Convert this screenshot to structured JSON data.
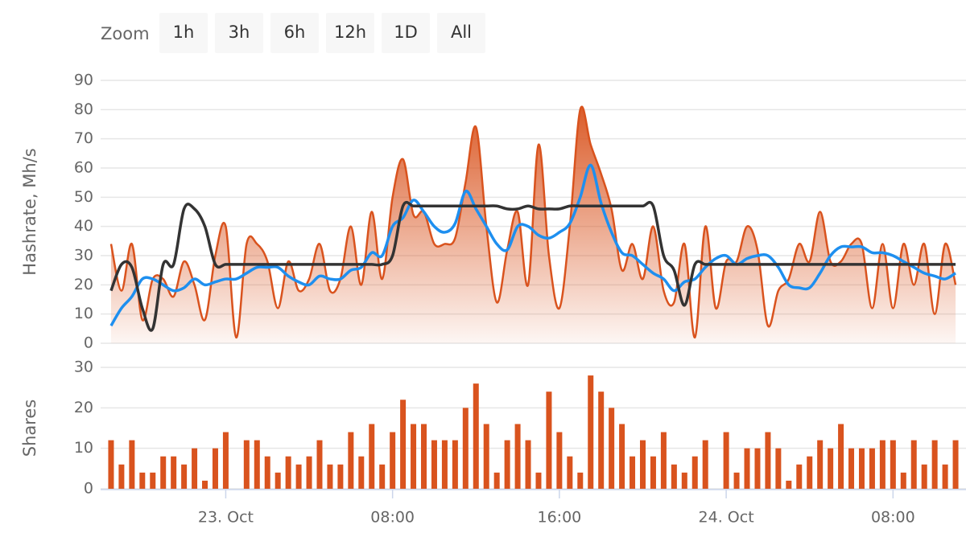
{
  "range_selector": {
    "label": "Zoom",
    "buttons": [
      "1h",
      "3h",
      "6h",
      "12h",
      "1D",
      "All"
    ]
  },
  "chart_data": [
    {
      "type": "area",
      "ylabel": "Hashrate, Mh/s",
      "x": [
        -5.5,
        -5,
        -4.5,
        -4,
        -3.5,
        -3,
        -2.5,
        -2,
        -1.5,
        -1,
        -0.5,
        0,
        0.5,
        1,
        1.5,
        2,
        2.5,
        3,
        3.5,
        4,
        4.5,
        5,
        5.5,
        6,
        6.5,
        7,
        7.5,
        8,
        8.5,
        9,
        9.5,
        10,
        10.5,
        11,
        11.5,
        12,
        12.5,
        13,
        13.5,
        14,
        14.5,
        15,
        15.5,
        16,
        16.5,
        17,
        17.5,
        18,
        18.5,
        19,
        19.5,
        20,
        20.5,
        21,
        21.5,
        22,
        22.5,
        23,
        23.5,
        24,
        24.5,
        25,
        25.5,
        26,
        26.5,
        27,
        27.5,
        28,
        28.5,
        29,
        29.5,
        30,
        30.5,
        31,
        31.5,
        32,
        32.5,
        33,
        33.5,
        34,
        34.5,
        35
      ],
      "xlim": [
        -6,
        35.5
      ],
      "xticks": [
        {
          "value": 0,
          "label": "23. Oct"
        },
        {
          "value": 8,
          "label": "08:00"
        },
        {
          "value": 16,
          "label": "16:00"
        },
        {
          "value": 24,
          "label": "24. Oct"
        },
        {
          "value": 32,
          "label": "08:00"
        }
      ],
      "ylim": [
        0,
        90
      ],
      "yticks": [
        0,
        10,
        20,
        30,
        40,
        50,
        60,
        70,
        80,
        90
      ],
      "grid": true,
      "series": [
        {
          "type": "area",
          "color": "#d9531e",
          "values": [
            34,
            18,
            34,
            8,
            22,
            22,
            16,
            28,
            20,
            8,
            30,
            40,
            2,
            34,
            34,
            28,
            12,
            28,
            18,
            22,
            34,
            18,
            22,
            40,
            20,
            45,
            22,
            50,
            63,
            44,
            45,
            34,
            34,
            36,
            55,
            74,
            40,
            14,
            32,
            45,
            20,
            68,
            30,
            12,
            40,
            80,
            68,
            58,
            46,
            25,
            34,
            22,
            40,
            18,
            14,
            34,
            2,
            40,
            12,
            28,
            28,
            40,
            32,
            6,
            18,
            22,
            34,
            28,
            45,
            28,
            28,
            34,
            34,
            12,
            34,
            12,
            34,
            20,
            34,
            10,
            34,
            20
          ]
        },
        {
          "type": "line",
          "color": "#1e8fef",
          "values": [
            6,
            12,
            16,
            22,
            22,
            20,
            18,
            19,
            22,
            20,
            21,
            22,
            22,
            24,
            26,
            26,
            26,
            23,
            21,
            20,
            23,
            22,
            22,
            25,
            26,
            31,
            30,
            40,
            43,
            49,
            45,
            40,
            38,
            41,
            52,
            46,
            40,
            34,
            32,
            40,
            40,
            37,
            36,
            38,
            41,
            50,
            61,
            48,
            38,
            31,
            30,
            27,
            24,
            22,
            18,
            21,
            22,
            26,
            29,
            30,
            27,
            29,
            30,
            30,
            26,
            20,
            19,
            19,
            24,
            30,
            33,
            33,
            33,
            31,
            31,
            30,
            28,
            26,
            24,
            23,
            22,
            24
          ]
        },
        {
          "type": "line",
          "color": "#333333",
          "values": [
            18,
            27,
            26,
            12,
            5,
            27,
            27,
            46,
            46,
            40,
            27,
            27,
            27,
            27,
            27,
            27,
            27,
            27,
            27,
            27,
            27,
            27,
            27,
            27,
            27,
            27,
            27,
            30,
            47,
            47,
            47,
            47,
            47,
            47,
            47,
            47,
            47,
            47,
            46,
            46,
            47,
            46,
            46,
            46,
            47,
            47,
            47,
            47,
            47,
            47,
            47,
            47,
            47,
            30,
            25,
            13,
            27,
            27,
            27,
            27,
            27,
            27,
            27,
            27,
            27,
            27,
            27,
            27,
            27,
            27,
            27,
            27,
            27,
            27,
            27,
            27,
            27,
            27,
            27,
            27,
            27,
            27
          ]
        }
      ]
    },
    {
      "type": "bar",
      "ylabel": "Shares",
      "color": "#d9531e",
      "x": [
        -5.5,
        -5,
        -4.5,
        -4,
        -3.5,
        -3,
        -2.5,
        -2,
        -1.5,
        -1,
        -0.5,
        0,
        0.5,
        1,
        1.5,
        2,
        2.5,
        3,
        3.5,
        4,
        4.5,
        5,
        5.5,
        6,
        6.5,
        7,
        7.5,
        8,
        8.5,
        9,
        9.5,
        10,
        10.5,
        11,
        11.5,
        12,
        12.5,
        13,
        13.5,
        14,
        14.5,
        15,
        15.5,
        16,
        16.5,
        17,
        17.5,
        18,
        18.5,
        19,
        19.5,
        20,
        20.5,
        21,
        21.5,
        22,
        22.5,
        23,
        23.5,
        24,
        24.5,
        25,
        25.5,
        26,
        26.5,
        27,
        27.5,
        28,
        28.5,
        29,
        29.5,
        30,
        30.5,
        31,
        31.5,
        32,
        32.5,
        33,
        33.5,
        34,
        34.5,
        35
      ],
      "values": [
        12,
        6,
        12,
        4,
        4,
        8,
        8,
        6,
        10,
        2,
        10,
        14,
        0,
        12,
        12,
        8,
        4,
        8,
        6,
        8,
        12,
        6,
        6,
        14,
        8,
        16,
        6,
        14,
        22,
        16,
        16,
        12,
        12,
        12,
        20,
        26,
        16,
        4,
        12,
        16,
        12,
        4,
        24,
        14,
        8,
        4,
        28,
        24,
        20,
        16,
        8,
        12,
        8,
        14,
        6,
        4,
        8,
        12,
        0,
        14,
        4,
        10,
        10,
        14,
        10,
        2,
        6,
        8,
        12,
        10,
        16,
        10,
        10,
        10,
        12,
        12,
        4,
        12,
        6,
        12,
        6,
        12
      ],
      "ylim": [
        0,
        30
      ],
      "yticks": [
        0,
        10,
        20,
        30
      ],
      "grid": true
    }
  ]
}
